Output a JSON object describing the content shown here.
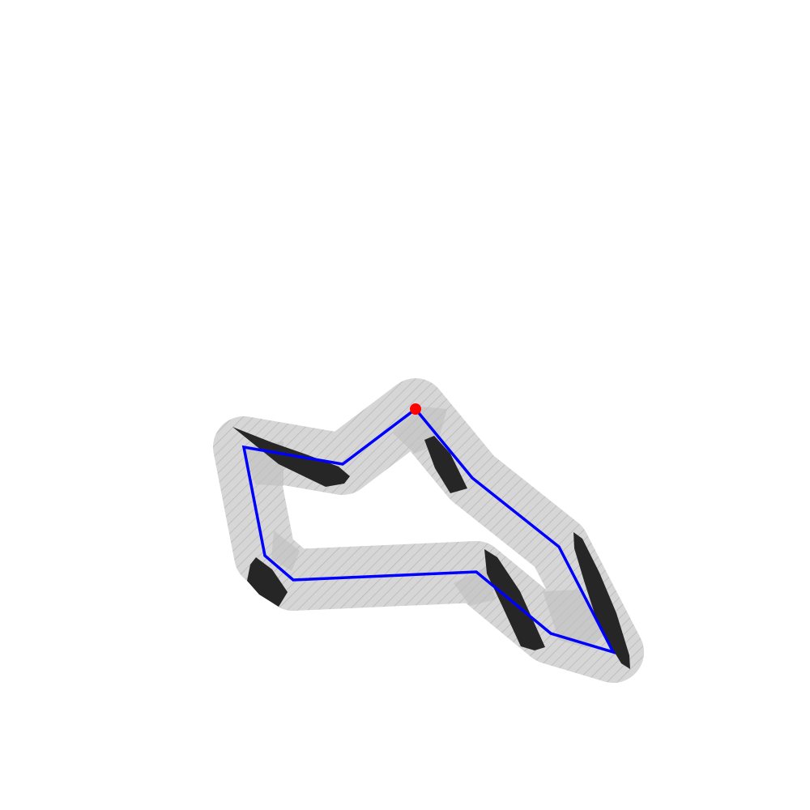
{
  "scene": {
    "type": "track-path",
    "track_count": 1,
    "waypoint_count": 9,
    "obstacle_count": 5,
    "start_marker_count": 1
  },
  "colors": {
    "background": "#ffffff",
    "track_fill": "#d6d6d6",
    "track_hatch": "#b5b5b5",
    "obstacle": "#262626",
    "shadow": "#bdbdbd",
    "path": "#0000ff",
    "start": "#ff0000"
  },
  "icons": {
    "start": "start-dot-icon",
    "obstacle": "obstacle-icon",
    "path": "route-line-icon"
  }
}
